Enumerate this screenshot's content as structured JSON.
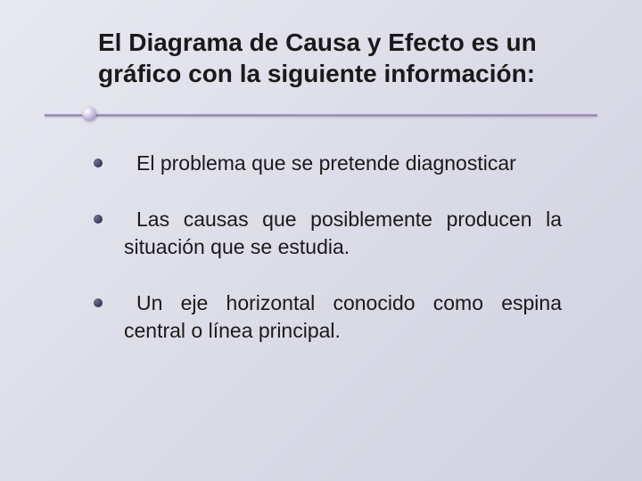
{
  "slide": {
    "title": "El Diagrama de Causa y Efecto es un gráfico con la siguiente información:",
    "bullets": [
      "El problema que se pretende diagnosticar",
      "Las causas que posiblemente producen la situación que se estudia.",
      "Un eje horizontal conocido como espina central o línea principal."
    ]
  },
  "styling": {
    "background_gradient": [
      "#e8e8f0",
      "#dcdce8",
      "#d0d0e0"
    ],
    "title_fontsize": 28,
    "title_color": "#1a1a1a",
    "body_fontsize": 23,
    "body_color": "#1a1a1a",
    "divider_colors": [
      "#b8a8d0",
      "#9080b0"
    ],
    "bullet_color": "#303050",
    "font_family": "Arial"
  }
}
